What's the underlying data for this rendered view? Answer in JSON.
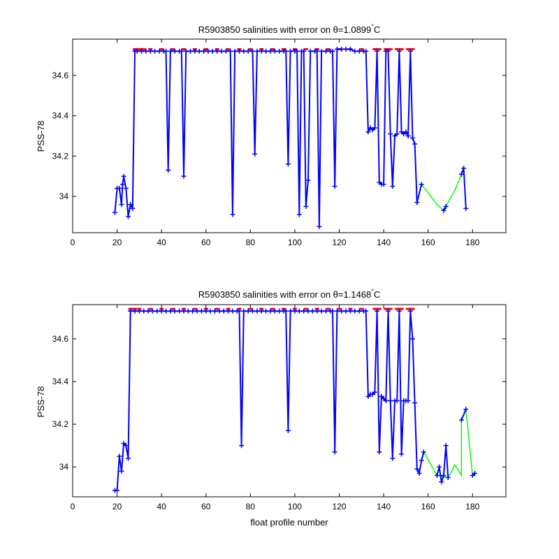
{
  "chart_data": [
    {
      "type": "line",
      "title": "R5903850 salinities with error on θ=1.0899°C",
      "title_prefix": "R5903850 salinities with error on θ=1.0899",
      "title_degree": "°",
      "title_suffix": "C",
      "xlabel": "",
      "ylabel": "PSS-78",
      "xlim": [
        0,
        195
      ],
      "ylim": [
        33.82,
        34.78
      ],
      "xticks": [
        "0",
        "20",
        "40",
        "60",
        "80",
        "100",
        "120",
        "140",
        "160",
        "180"
      ],
      "yticks": [
        "34",
        "34.2",
        "34.4",
        "34.6"
      ],
      "colors": {
        "main": "#0000ff",
        "gap": "#00ff00",
        "flag": "#ff0000"
      },
      "series": {
        "main": [
          [
            19,
            33.92
          ],
          [
            20,
            34.04
          ],
          [
            21,
            34.04
          ],
          [
            22,
            33.96
          ],
          [
            22.5,
            34.06
          ],
          [
            23,
            34.1
          ],
          [
            24,
            34.04
          ],
          [
            25,
            33.9
          ],
          [
            26,
            33.96
          ],
          [
            27,
            33.94
          ],
          [
            28,
            34.72
          ],
          [
            29,
            34.72
          ],
          [
            31,
            34.72
          ],
          [
            33,
            34.72
          ],
          [
            35,
            34.72
          ],
          [
            37,
            34.72
          ],
          [
            39,
            34.72
          ],
          [
            41,
            34.72
          ],
          [
            42,
            34.72
          ],
          [
            43,
            34.13
          ],
          [
            44,
            34.72
          ],
          [
            46,
            34.72
          ],
          [
            48,
            34.72
          ],
          [
            49,
            34.72
          ],
          [
            50,
            34.1
          ],
          [
            51,
            34.72
          ],
          [
            53,
            34.72
          ],
          [
            55,
            34.72
          ],
          [
            57,
            34.72
          ],
          [
            59,
            34.72
          ],
          [
            61,
            34.72
          ],
          [
            63,
            34.72
          ],
          [
            65,
            34.72
          ],
          [
            67,
            34.72
          ],
          [
            69,
            34.72
          ],
          [
            71,
            34.72
          ],
          [
            72,
            33.91
          ],
          [
            73,
            34.72
          ],
          [
            75,
            34.72
          ],
          [
            77,
            34.72
          ],
          [
            79,
            34.72
          ],
          [
            81,
            34.72
          ],
          [
            82,
            34.21
          ],
          [
            83,
            34.72
          ],
          [
            85,
            34.72
          ],
          [
            87,
            34.72
          ],
          [
            89,
            34.72
          ],
          [
            91,
            34.72
          ],
          [
            93,
            34.72
          ],
          [
            95,
            34.72
          ],
          [
            96,
            34.72
          ],
          [
            97,
            34.16
          ],
          [
            98,
            34.72
          ],
          [
            100,
            34.72
          ],
          [
            101,
            34.72
          ],
          [
            102,
            33.91
          ],
          [
            103,
            34.72
          ],
          [
            104,
            34.72
          ],
          [
            105,
            33.95
          ],
          [
            106,
            34.08
          ],
          [
            107,
            34.72
          ],
          [
            109,
            34.72
          ],
          [
            110,
            34.72
          ],
          [
            111,
            33.85
          ],
          [
            112,
            34.72
          ],
          [
            114,
            34.72
          ],
          [
            116,
            34.72
          ],
          [
            117,
            34.72
          ],
          [
            118,
            34.05
          ],
          [
            119,
            34.73
          ],
          [
            121,
            34.73
          ],
          [
            123,
            34.73
          ],
          [
            125,
            34.73
          ],
          [
            127,
            34.72
          ],
          [
            129,
            34.72
          ],
          [
            131,
            34.72
          ],
          [
            132,
            34.72
          ],
          [
            133,
            34.32
          ],
          [
            134,
            34.34
          ],
          [
            135,
            34.33
          ],
          [
            136,
            34.34
          ],
          [
            137,
            34.72
          ],
          [
            138,
            34.07
          ],
          [
            139,
            34.06
          ],
          [
            140,
            34.06
          ],
          [
            141,
            34.72
          ],
          [
            142,
            34.72
          ],
          [
            143,
            34.31
          ],
          [
            144,
            34.05
          ],
          [
            145,
            34.3
          ],
          [
            146,
            34.31
          ],
          [
            147,
            34.72
          ],
          [
            148,
            34.32
          ],
          [
            149,
            34.31
          ],
          [
            150,
            34.32
          ],
          [
            151,
            34.3
          ],
          [
            152,
            34.72
          ],
          [
            153,
            34.29
          ],
          [
            154,
            34.26
          ],
          [
            155,
            33.97
          ]
        ],
        "main_segments": [
          [
            [
              155,
              33.97
            ],
            [
              157,
              34.06
            ]
          ],
          [
            [
              167,
              33.93
            ],
            [
              168,
              33.95
            ]
          ],
          [
            [
              175,
              34.11
            ],
            [
              176,
              34.14
            ],
            [
              177,
              33.94
            ]
          ]
        ],
        "gap": [
          [
            157,
            34.06
          ],
          [
            164,
            33.96
          ],
          [
            167,
            33.93
          ],
          [
            168,
            33.95
          ],
          [
            172,
            34.03
          ],
          [
            175,
            34.11
          ]
        ],
        "flags": [
          [
            28,
            34.73
          ],
          [
            29,
            34.73
          ],
          [
            30,
            34.73
          ],
          [
            31,
            34.73
          ],
          [
            32,
            34.73
          ],
          [
            35,
            34.73
          ],
          [
            40,
            34.73
          ],
          [
            45,
            34.73
          ],
          [
            50,
            34.73
          ],
          [
            55,
            34.73
          ],
          [
            60,
            34.73
          ],
          [
            65,
            34.73
          ],
          [
            70,
            34.73
          ],
          [
            75,
            34.73
          ],
          [
            80,
            34.73
          ],
          [
            85,
            34.73
          ],
          [
            90,
            34.73
          ],
          [
            95,
            34.73
          ],
          [
            100,
            34.73
          ],
          [
            105,
            34.73
          ],
          [
            110,
            34.73
          ],
          [
            115,
            34.73
          ],
          [
            120,
            34.73
          ],
          [
            125,
            34.73
          ],
          [
            130,
            34.73
          ],
          [
            136,
            34.73
          ],
          [
            137,
            34.73
          ],
          [
            138,
            34.73
          ],
          [
            141,
            34.73
          ],
          [
            142,
            34.73
          ],
          [
            143,
            34.73
          ],
          [
            146,
            34.73
          ],
          [
            147,
            34.73
          ],
          [
            148,
            34.73
          ],
          [
            151,
            34.73
          ],
          [
            152,
            34.73
          ],
          [
            153,
            34.73
          ]
        ]
      }
    },
    {
      "type": "line",
      "title": "R5903850 salinities with error on θ=1.1468°C",
      "title_prefix": "R5903850 salinities with error on θ=1.1468",
      "title_degree": "°",
      "title_suffix": "C",
      "xlabel": "float profile number",
      "ylabel": "PSS-78",
      "xlim": [
        0,
        195
      ],
      "ylim": [
        33.86,
        34.76
      ],
      "xticks": [
        "0",
        "20",
        "40",
        "60",
        "80",
        "100",
        "120",
        "140",
        "160",
        "180"
      ],
      "yticks": [
        "34",
        "34.2",
        "34.4",
        "34.6"
      ],
      "colors": {
        "main": "#0000ff",
        "gap": "#00ff00",
        "flag": "#ff0000"
      },
      "series": {
        "main": [
          [
            19,
            33.89
          ],
          [
            20,
            33.89
          ],
          [
            21,
            34.05
          ],
          [
            22,
            33.98
          ],
          [
            23,
            34.11
          ],
          [
            24,
            34.1
          ],
          [
            25,
            34.04
          ],
          [
            26,
            34.73
          ],
          [
            28,
            34.73
          ],
          [
            30,
            34.73
          ],
          [
            32,
            34.73
          ],
          [
            34,
            34.73
          ],
          [
            36,
            34.73
          ],
          [
            38,
            34.73
          ],
          [
            40,
            34.73
          ],
          [
            42,
            34.73
          ],
          [
            44,
            34.73
          ],
          [
            46,
            34.73
          ],
          [
            48,
            34.73
          ],
          [
            50,
            34.73
          ],
          [
            52,
            34.73
          ],
          [
            54,
            34.73
          ],
          [
            56,
            34.73
          ],
          [
            58,
            34.73
          ],
          [
            60,
            34.73
          ],
          [
            62,
            34.73
          ],
          [
            64,
            34.73
          ],
          [
            66,
            34.73
          ],
          [
            68,
            34.73
          ],
          [
            70,
            34.73
          ],
          [
            72,
            34.73
          ],
          [
            74,
            34.73
          ],
          [
            75,
            34.73
          ],
          [
            76,
            34.1
          ],
          [
            77,
            34.73
          ],
          [
            79,
            34.73
          ],
          [
            81,
            34.73
          ],
          [
            83,
            34.73
          ],
          [
            85,
            34.73
          ],
          [
            87,
            34.73
          ],
          [
            89,
            34.73
          ],
          [
            91,
            34.73
          ],
          [
            93,
            34.73
          ],
          [
            95,
            34.73
          ],
          [
            96,
            34.73
          ],
          [
            97,
            34.17
          ],
          [
            98,
            34.73
          ],
          [
            100,
            34.73
          ],
          [
            102,
            34.73
          ],
          [
            104,
            34.73
          ],
          [
            106,
            34.73
          ],
          [
            108,
            34.73
          ],
          [
            110,
            34.73
          ],
          [
            112,
            34.73
          ],
          [
            114,
            34.73
          ],
          [
            116,
            34.73
          ],
          [
            117,
            34.73
          ],
          [
            118,
            34.07
          ],
          [
            119,
            34.73
          ],
          [
            121,
            34.73
          ],
          [
            123,
            34.73
          ],
          [
            125,
            34.73
          ],
          [
            127,
            34.73
          ],
          [
            129,
            34.73
          ],
          [
            131,
            34.73
          ],
          [
            132,
            34.73
          ],
          [
            133,
            34.33
          ],
          [
            134,
            34.34
          ],
          [
            135,
            34.34
          ],
          [
            136,
            34.35
          ],
          [
            137,
            34.73
          ],
          [
            138,
            34.07
          ],
          [
            139,
            34.33
          ],
          [
            140,
            34.32
          ],
          [
            141,
            34.31
          ],
          [
            142,
            34.73
          ],
          [
            143,
            34.31
          ],
          [
            144,
            34.04
          ],
          [
            145,
            34.31
          ],
          [
            146,
            34.31
          ],
          [
            147,
            34.73
          ],
          [
            148,
            34.06
          ],
          [
            149,
            34.31
          ],
          [
            150,
            34.31
          ],
          [
            151,
            34.31
          ],
          [
            152,
            34.73
          ],
          [
            153,
            34.6
          ],
          [
            154,
            34.3
          ],
          [
            155,
            33.99
          ],
          [
            156,
            33.97
          ],
          [
            157,
            34.03
          ],
          [
            158,
            34.07
          ]
        ],
        "main_segments": [
          [
            [
              164,
              33.96
            ],
            [
              165,
              34.0
            ],
            [
              166,
              33.93
            ],
            [
              167,
              33.96
            ],
            [
              168,
              34.1
            ],
            [
              169,
              33.95
            ]
          ],
          [
            [
              175,
              34.22
            ],
            [
              177,
              34.27
            ]
          ],
          [
            [
              180,
              33.96
            ],
            [
              181,
              33.97
            ]
          ]
        ],
        "gap": [
          [
            158,
            34.07
          ],
          [
            164,
            33.96
          ],
          [
            169,
            33.95
          ],
          [
            172,
            34.01
          ],
          [
            175,
            33.96
          ],
          [
            175,
            34.22
          ],
          [
            177,
            34.27
          ],
          [
            180,
            33.96
          ]
        ],
        "flags": [
          [
            26,
            34.74
          ],
          [
            27,
            34.74
          ],
          [
            28,
            34.74
          ],
          [
            30,
            34.74
          ],
          [
            35,
            34.74
          ],
          [
            40,
            34.74
          ],
          [
            45,
            34.74
          ],
          [
            50,
            34.74
          ],
          [
            55,
            34.74
          ],
          [
            60,
            34.74
          ],
          [
            65,
            34.74
          ],
          [
            70,
            34.74
          ],
          [
            75,
            34.74
          ],
          [
            80,
            34.74
          ],
          [
            85,
            34.74
          ],
          [
            90,
            34.74
          ],
          [
            95,
            34.74
          ],
          [
            100,
            34.74
          ],
          [
            105,
            34.74
          ],
          [
            110,
            34.74
          ],
          [
            115,
            34.74
          ],
          [
            120,
            34.74
          ],
          [
            125,
            34.74
          ],
          [
            130,
            34.74
          ],
          [
            136,
            34.74
          ],
          [
            137,
            34.74
          ],
          [
            138,
            34.74
          ],
          [
            141,
            34.74
          ],
          [
            142,
            34.74
          ],
          [
            143,
            34.74
          ],
          [
            146,
            34.74
          ],
          [
            147,
            34.74
          ],
          [
            148,
            34.74
          ],
          [
            151,
            34.74
          ],
          [
            152,
            34.74
          ],
          [
            153,
            34.74
          ]
        ]
      }
    }
  ]
}
